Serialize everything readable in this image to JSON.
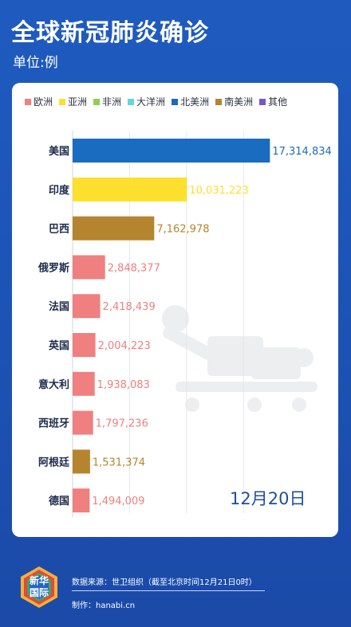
{
  "header": {
    "title": "全球新冠肺炎确诊",
    "unit": "单位:例"
  },
  "legend": [
    {
      "label": "欧洲",
      "color": "#f07f7f"
    },
    {
      "label": "亚洲",
      "color": "#fddf2d"
    },
    {
      "label": "非洲",
      "color": "#8fcf4f"
    },
    {
      "label": "大洋洲",
      "color": "#63d6d6"
    },
    {
      "label": "北美洲",
      "color": "#1a6cc0"
    },
    {
      "label": "南美洲",
      "color": "#b5842e"
    },
    {
      "label": "其他",
      "color": "#7a55c8"
    }
  ],
  "chart_data": {
    "type": "bar",
    "orientation": "horizontal",
    "categories": [
      "美国",
      "印度",
      "巴西",
      "俄罗斯",
      "法国",
      "英国",
      "意大利",
      "西班牙",
      "阿根廷",
      "德国"
    ],
    "values": [
      17314834,
      10031223,
      7162978,
      2848377,
      2418439,
      2004223,
      1938083,
      1797236,
      1531374,
      1494009
    ],
    "value_labels": [
      "17,314,834",
      "10,031,223",
      "7,162,978",
      "2,848,377",
      "2,418,439",
      "2,004,223",
      "1,938,083",
      "1,797,236",
      "1,531,374",
      "1,494,009"
    ],
    "regions": [
      "北美洲",
      "亚洲",
      "南美洲",
      "欧洲",
      "欧洲",
      "欧洲",
      "欧洲",
      "欧洲",
      "南美洲",
      "欧洲"
    ],
    "xlim": [
      0,
      17500000
    ],
    "grid": true
  },
  "date_label": "12月20日",
  "logo": {
    "line1": "新华",
    "line2": "国际"
  },
  "footer": {
    "source": "数据来源：世卫组织（截至北京时间12月21日0时）",
    "maker": "制作：hanabi.cn"
  }
}
